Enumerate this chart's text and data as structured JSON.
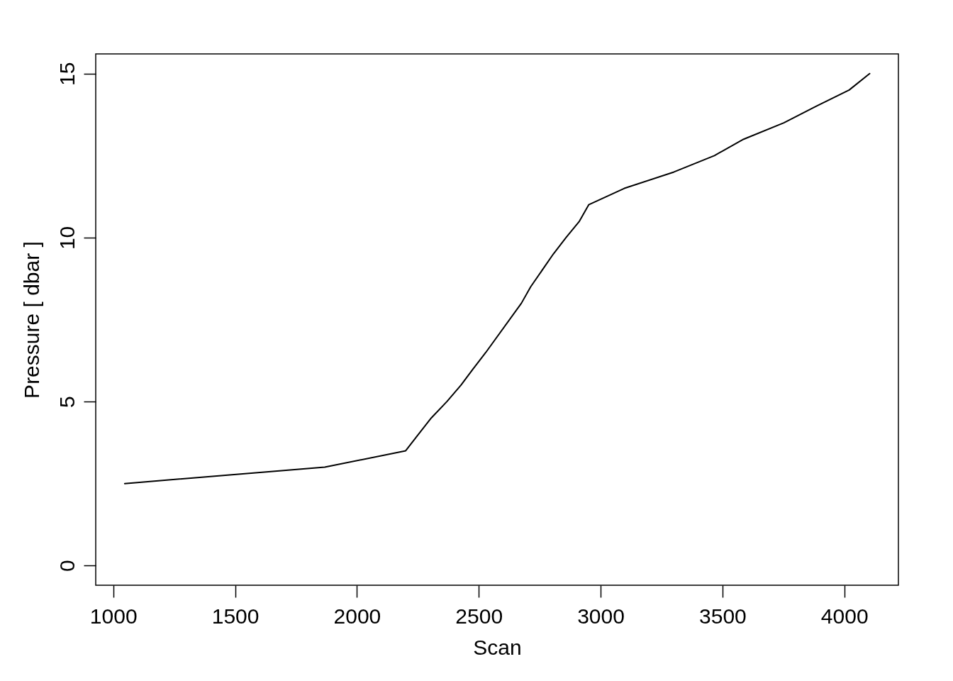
{
  "chart_data": {
    "type": "line",
    "xlabel": "Scan",
    "ylabel": "Pressure [ dbar ]",
    "x": [
      1047,
      1868,
      2200,
      2252,
      2305,
      2369,
      2427,
      2477,
      2529,
      2675,
      2713,
      2806,
      2858,
      2913,
      2951,
      3097,
      3301,
      3467,
      3587,
      3752,
      3884,
      4020,
      4104
    ],
    "series": [
      {
        "color": "#000000",
        "values": [
          2.5,
          3.0,
          3.5,
          4.0,
          4.5,
          5.0,
          5.5,
          6.0,
          6.5,
          8.0,
          8.5,
          9.5,
          10.0,
          10.5,
          11.0,
          11.5,
          12.0,
          12.5,
          13.0,
          13.5,
          14.0,
          14.5,
          15.0
        ]
      }
    ],
    "xlim": [
      928,
      4222
    ],
    "ylim": [
      -0.6,
      15.6
    ],
    "xticks": [
      1000,
      1500,
      2000,
      2500,
      3000,
      3500,
      4000
    ],
    "yticks": [
      0,
      5,
      10,
      15
    ],
    "grid": false,
    "line_style": "solid"
  }
}
